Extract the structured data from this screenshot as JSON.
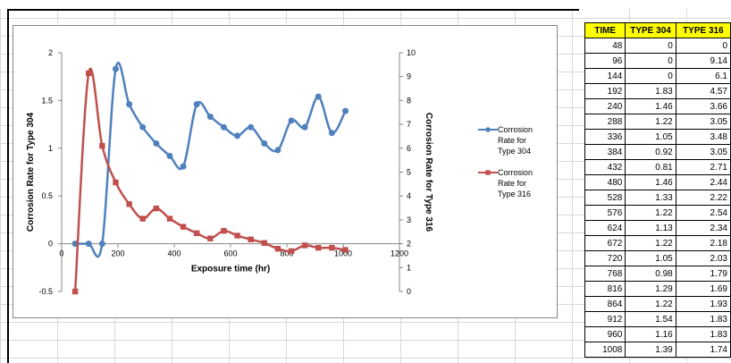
{
  "chart_data": {
    "type": "line",
    "x": [
      48,
      96,
      144,
      192,
      240,
      288,
      336,
      384,
      432,
      480,
      528,
      576,
      624,
      672,
      720,
      768,
      816,
      864,
      912,
      960,
      1008
    ],
    "series": [
      {
        "name": "Corrosion Rate for Type 304",
        "axis": "left",
        "color": "#4f81bd",
        "values": [
          0,
          0,
          0,
          1.83,
          1.46,
          1.22,
          1.05,
          0.92,
          0.81,
          1.46,
          1.33,
          1.22,
          1.13,
          1.22,
          1.05,
          0.98,
          1.29,
          1.22,
          1.54,
          1.16,
          1.39
        ]
      },
      {
        "name": "Corrosion Rate for Type 316",
        "axis": "right",
        "color": "#c0504d",
        "values": [
          0,
          9.14,
          6.1,
          4.57,
          3.66,
          3.05,
          3.48,
          3.05,
          2.71,
          2.44,
          2.22,
          2.54,
          2.34,
          2.18,
          2.03,
          1.79,
          1.69,
          1.93,
          1.83,
          1.83,
          1.74
        ]
      }
    ],
    "xlabel": "Exposure time (hr)",
    "ylabel": "Corrosion Rate for Type 304",
    "y2label": "Corrosion Rate for Type 316",
    "xlim": [
      0,
      1200
    ],
    "ylim": [
      -0.5,
      2
    ],
    "y2lim": [
      0,
      10
    ],
    "xticks": [
      0,
      200,
      400,
      600,
      800,
      1000,
      1200
    ],
    "yticks": [
      -0.5,
      0,
      0.5,
      1,
      1.5,
      2
    ],
    "y2ticks": [
      0,
      1,
      2,
      3,
      4,
      5,
      6,
      7,
      8,
      9,
      10
    ],
    "legend": "right",
    "grid": false
  },
  "legend": {
    "s304": [
      "Corrosion",
      "Rate for",
      "Type 304"
    ],
    "s316": [
      "Corrosion",
      "Rate for",
      "Type 316"
    ]
  },
  "table": {
    "headers": [
      "TIME",
      "TYPE 304",
      "TYPE 316"
    ],
    "rows": [
      [
        "48",
        "0",
        "0"
      ],
      [
        "96",
        "0",
        "9.14"
      ],
      [
        "144",
        "0",
        "6.1"
      ],
      [
        "192",
        "1.83",
        "4.57"
      ],
      [
        "240",
        "1.46",
        "3.66"
      ],
      [
        "288",
        "1.22",
        "3.05"
      ],
      [
        "336",
        "1.05",
        "3.48"
      ],
      [
        "384",
        "0.92",
        "3.05"
      ],
      [
        "432",
        "0.81",
        "2.71"
      ],
      [
        "480",
        "1.46",
        "2.44"
      ],
      [
        "528",
        "1.33",
        "2.22"
      ],
      [
        "576",
        "1.22",
        "2.54"
      ],
      [
        "624",
        "1.13",
        "2.34"
      ],
      [
        "672",
        "1.22",
        "2.18"
      ],
      [
        "720",
        "1.05",
        "2.03"
      ],
      [
        "768",
        "0.98",
        "1.79"
      ],
      [
        "816",
        "1.29",
        "1.69"
      ],
      [
        "864",
        "1.22",
        "1.93"
      ],
      [
        "912",
        "1.54",
        "1.83"
      ],
      [
        "960",
        "1.16",
        "1.83"
      ],
      [
        "1008",
        "1.39",
        "1.74"
      ]
    ]
  }
}
